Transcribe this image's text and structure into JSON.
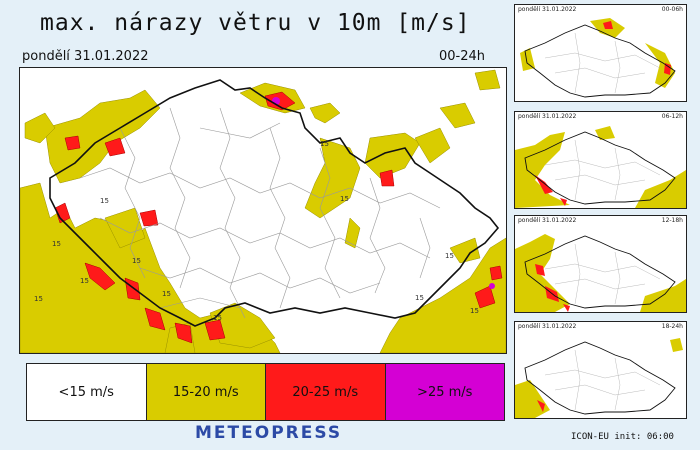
{
  "header": {
    "title": "max. nárazy větru v 10m [m/s]",
    "date": "pondělí 31.01.2022",
    "range": "00-24h"
  },
  "legend": [
    {
      "label": "<15 m/s",
      "color": "#ffffff"
    },
    {
      "label": "15-20 m/s",
      "color": "#d9cc00"
    },
    {
      "label": "20-25 m/s",
      "color": "#ff1a1a"
    },
    {
      "label": ">25 m/s",
      "color": "#d400d4"
    }
  ],
  "map_labels": [
    "15",
    "15",
    "15",
    "15",
    "15",
    "15",
    "15",
    "15",
    "15",
    "15",
    "15",
    "15"
  ],
  "brand": "METEOPRESS",
  "panels": [
    {
      "date": "pondělí 31.01.2022",
      "range": "00-06h"
    },
    {
      "date": "pondělí 31.01.2022",
      "range": "06-12h"
    },
    {
      "date": "pondělí 31.01.2022",
      "range": "12-18h"
    },
    {
      "date": "pondělí 31.01.2022",
      "range": "18-24h"
    }
  ],
  "model": "ICON-EU  init:  06:00"
}
